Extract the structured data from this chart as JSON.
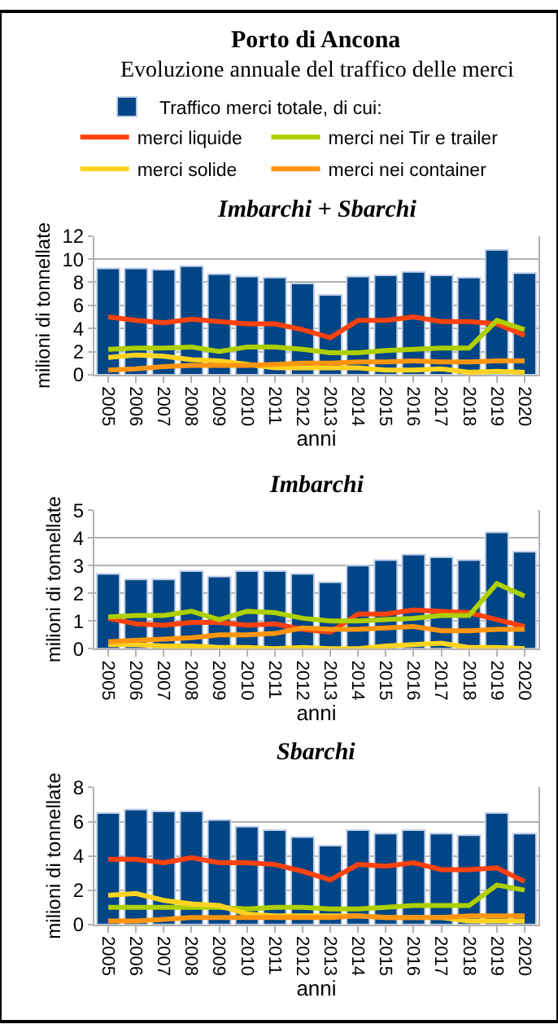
{
  "chart_data": [
    {
      "type": "other",
      "title": "Porto di Ancona",
      "subtitle": "Evoluzione annuale del traffico delle merci"
    },
    {
      "type": "bar",
      "title": "Imbarchi + Sbarchi",
      "xlabel": "anni",
      "ylabel": "milioni di tonnellate",
      "categories": [
        "2005",
        "2006",
        "2007",
        "2008",
        "2009",
        "2010",
        "2011",
        "2012",
        "2013",
        "2014",
        "2015",
        "2016",
        "2017",
        "2018",
        "2019",
        "2020"
      ],
      "ylim": [
        0,
        12
      ],
      "yticks": [
        0,
        2,
        4,
        6,
        8,
        10,
        12
      ],
      "grid": "y",
      "legend": "top",
      "marker": "none",
      "series": [
        {
          "name": "Traffico merci totale, di cui:",
          "color": "#004586",
          "values": [
            9.2,
            9.2,
            9.1,
            9.4,
            8.7,
            8.5,
            8.4,
            7.9,
            6.9,
            8.5,
            8.6,
            8.9,
            8.6,
            8.4,
            10.8,
            8.8
          ]
        },
        {
          "name": "merci liquide",
          "type": "line",
          "color": "#ff420e",
          "values": [
            5.0,
            4.7,
            4.5,
            4.8,
            4.6,
            4.4,
            4.4,
            3.9,
            3.2,
            4.7,
            4.7,
            5.0,
            4.6,
            4.6,
            4.4,
            3.4
          ]
        },
        {
          "name": "merci nei Tir e trailer",
          "type": "line",
          "color": "#aecf00",
          "values": [
            2.2,
            2.3,
            2.3,
            2.4,
            2.0,
            2.4,
            2.4,
            2.2,
            1.9,
            1.9,
            2.1,
            2.2,
            2.3,
            2.3,
            4.7,
            3.9
          ]
        },
        {
          "name": "merci solide",
          "type": "line",
          "color": "#ffd320",
          "values": [
            1.5,
            1.7,
            1.6,
            1.3,
            1.2,
            0.9,
            0.6,
            0.6,
            0.6,
            0.6,
            0.4,
            0.4,
            0.5,
            0.2,
            0.3,
            0.2
          ]
        },
        {
          "name": "merci nei container",
          "type": "line",
          "color": "#ff950e",
          "values": [
            0.4,
            0.5,
            0.7,
            0.8,
            0.8,
            0.8,
            0.9,
            1.0,
            1.0,
            1.1,
            1.1,
            1.2,
            1.1,
            1.1,
            1.2,
            1.2
          ]
        }
      ]
    },
    {
      "type": "bar",
      "title": "Imbarchi",
      "xlabel": "anni",
      "ylabel": "milioni di tonnellate",
      "categories": [
        "2005",
        "2006",
        "2007",
        "2008",
        "2009",
        "2010",
        "2011",
        "2012",
        "2013",
        "2014",
        "2015",
        "2016",
        "2017",
        "2018",
        "2019",
        "2020"
      ],
      "ylim": [
        0,
        5
      ],
      "yticks": [
        0,
        1,
        2,
        3,
        4,
        5
      ],
      "grid": "y",
      "marker": "none",
      "series": [
        {
          "color": "#004586",
          "values": [
            2.7,
            2.5,
            2.5,
            2.8,
            2.6,
            2.8,
            2.8,
            2.7,
            2.4,
            3.0,
            3.2,
            3.4,
            3.3,
            3.2,
            4.2,
            3.5
          ]
        },
        {
          "type": "line",
          "color": "#ff420e",
          "values": [
            1.1,
            0.9,
            0.85,
            0.95,
            0.95,
            0.85,
            0.9,
            0.7,
            0.6,
            1.25,
            1.25,
            1.4,
            1.35,
            1.3,
            1.05,
            0.8
          ]
        },
        {
          "type": "line",
          "color": "#aecf00",
          "values": [
            1.15,
            1.2,
            1.2,
            1.35,
            1.05,
            1.35,
            1.3,
            1.1,
            1.0,
            1.0,
            1.05,
            1.1,
            1.2,
            1.2,
            2.35,
            1.9
          ]
        },
        {
          "type": "line",
          "color": "#ffd320",
          "values": [
            0.15,
            0.15,
            0.1,
            0.1,
            0.05,
            0.05,
            0.0,
            0.05,
            0.0,
            0.0,
            0.1,
            0.15,
            0.2,
            0.05,
            0.05,
            0.0
          ]
        },
        {
          "type": "line",
          "color": "#ff950e",
          "values": [
            0.25,
            0.3,
            0.35,
            0.4,
            0.5,
            0.5,
            0.55,
            0.75,
            0.7,
            0.7,
            0.75,
            0.8,
            0.65,
            0.65,
            0.7,
            0.7
          ]
        }
      ]
    },
    {
      "type": "bar",
      "title": "Sbarchi",
      "xlabel": "anni",
      "ylabel": "milioni di tonnellate",
      "categories": [
        "2005",
        "2006",
        "2007",
        "2008",
        "2009",
        "2010",
        "2011",
        "2012",
        "2013",
        "2014",
        "2015",
        "2016",
        "2017",
        "2018",
        "2019",
        "2020"
      ],
      "ylim": [
        0,
        8
      ],
      "yticks": [
        0,
        2,
        4,
        6,
        8
      ],
      "grid": "y",
      "marker": "none",
      "series": [
        {
          "color": "#004586",
          "values": [
            6.5,
            6.7,
            6.6,
            6.6,
            6.1,
            5.7,
            5.5,
            5.1,
            4.6,
            5.5,
            5.3,
            5.5,
            5.3,
            5.2,
            6.5,
            5.3
          ]
        },
        {
          "type": "line",
          "color": "#ff420e",
          "values": [
            3.8,
            3.8,
            3.6,
            3.9,
            3.6,
            3.6,
            3.5,
            3.1,
            2.6,
            3.5,
            3.4,
            3.6,
            3.2,
            3.2,
            3.3,
            2.5
          ]
        },
        {
          "type": "line",
          "color": "#aecf00",
          "values": [
            1.0,
            1.0,
            1.0,
            1.0,
            1.0,
            0.9,
            1.0,
            1.0,
            0.9,
            0.9,
            1.0,
            1.1,
            1.1,
            1.1,
            2.3,
            2.0
          ]
        },
        {
          "type": "line",
          "color": "#ffd320",
          "values": [
            1.7,
            1.8,
            1.4,
            1.2,
            1.1,
            0.6,
            0.5,
            0.5,
            0.5,
            0.5,
            0.4,
            0.4,
            0.4,
            0.2,
            0.2,
            0.2
          ]
        },
        {
          "type": "line",
          "color": "#ff950e",
          "values": [
            0.2,
            0.2,
            0.3,
            0.4,
            0.4,
            0.4,
            0.4,
            0.4,
            0.4,
            0.5,
            0.4,
            0.4,
            0.4,
            0.5,
            0.5,
            0.5
          ]
        }
      ]
    }
  ]
}
